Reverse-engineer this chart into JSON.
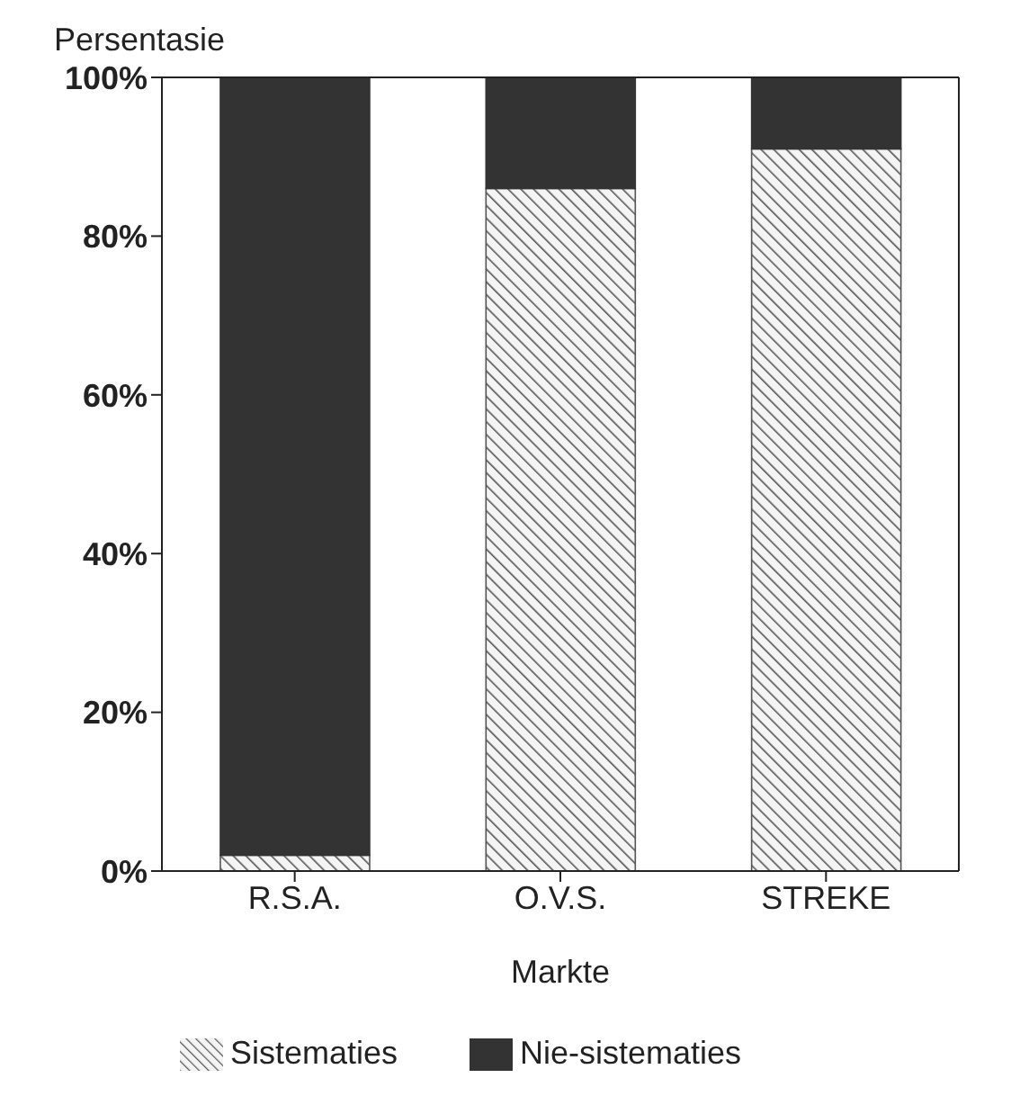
{
  "chart_data": {
    "type": "bar",
    "stacked": true,
    "ylabel": "Persentasie",
    "xlabel": "Markte",
    "categories": [
      "R.S.A.",
      "O.V.S.",
      "STREKE"
    ],
    "series": [
      {
        "name": "Sistematies",
        "color": "#555555",
        "values": [
          2,
          86,
          91
        ]
      },
      {
        "name": "Nie-sistematies",
        "color": "#333333",
        "values": [
          98,
          14,
          9
        ]
      }
    ],
    "ylim": [
      0,
      100
    ],
    "yticks": [
      {
        "value": 0,
        "label": "0%"
      },
      {
        "value": 20,
        "label": "20%"
      },
      {
        "value": 40,
        "label": "40%"
      },
      {
        "value": 60,
        "label": "60%"
      },
      {
        "value": 80,
        "label": "80%"
      },
      {
        "value": 100,
        "label": "100%"
      }
    ],
    "grid": false,
    "legend": "bottom"
  }
}
